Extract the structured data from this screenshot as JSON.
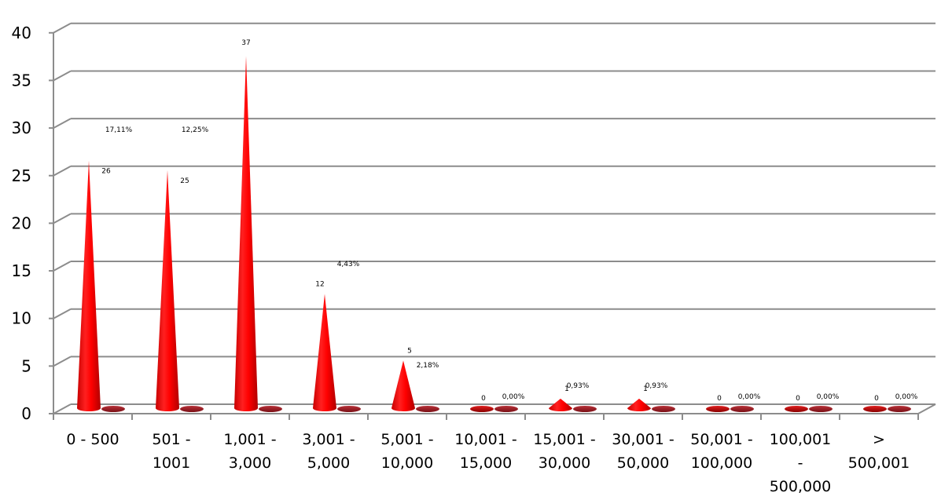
{
  "chart_data": {
    "type": "bar",
    "subtype": "3d-cone",
    "categories": [
      [
        "0 - 500"
      ],
      [
        "501 -",
        "1001"
      ],
      [
        "1,001 -",
        "3,000"
      ],
      [
        "3,001 -",
        "5,000"
      ],
      [
        "5,001 -",
        "10,000"
      ],
      [
        "10,001 -",
        "15,000"
      ],
      [
        "15,001 -",
        "30,000"
      ],
      [
        "30,001 -",
        "50,000"
      ],
      [
        "50,001 -",
        "100,000"
      ],
      [
        "100,001",
        "-",
        "500,000"
      ],
      [
        ">",
        "500,001"
      ]
    ],
    "series": [
      {
        "values": [
          26,
          25,
          37,
          12,
          5,
          0,
          1,
          1,
          0,
          0,
          0
        ],
        "labels": [
          "26",
          "25",
          "37",
          "12",
          "5",
          "0",
          "1",
          "1",
          "0",
          "0",
          "0"
        ],
        "color": "#ff0000"
      },
      {
        "values": [
          0,
          0,
          0,
          0,
          0,
          0,
          0,
          0,
          0,
          0,
          0
        ],
        "labels": [
          "17,11%",
          "12,25%",
          "",
          "4,43%",
          "2,18%",
          "0,00%",
          "0,93%",
          "0,93%",
          "0,00%",
          "0,00%",
          "0,00%"
        ],
        "color": "#a0121a"
      }
    ],
    "ylim": [
      0,
      40
    ],
    "yticks": [
      0,
      5,
      10,
      15,
      20,
      25,
      30,
      35,
      40
    ],
    "title": "",
    "xlabel": "",
    "ylabel": "",
    "grid": true,
    "legend": "none"
  }
}
